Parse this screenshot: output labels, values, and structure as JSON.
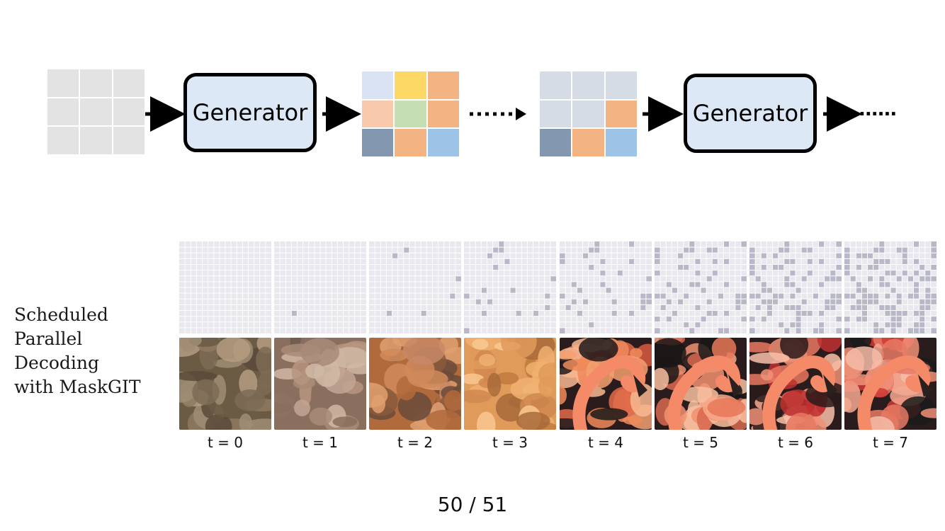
{
  "diagram": {
    "generator_label_1": "Generator",
    "generator_label_2": "Generator",
    "ellipsis": "......",
    "grids": [
      {
        "name": "input-mask-grid",
        "colors": [
          "#e3e3e3",
          "#e3e3e3",
          "#e3e3e3",
          "#e3e3e3",
          "#e3e3e3",
          "#e3e3e3",
          "#e3e3e3",
          "#e3e3e3",
          "#e3e3e3"
        ]
      },
      {
        "name": "output-token-grid",
        "colors": [
          "#d9e3f3",
          "#fdd865",
          "#f4b383",
          "#f8c9ab",
          "#c5dfb3",
          "#f4b383",
          "#8497b0",
          "#f4b383",
          "#9dc3e6"
        ]
      },
      {
        "name": "remasked-token-grid",
        "colors": [
          "#d6dce5",
          "#d6dce5",
          "#d6dce5",
          "#d6dce5",
          "#d6dce5",
          "#f4b383",
          "#8497b0",
          "#f4b383",
          "#9dc3e6"
        ]
      }
    ]
  },
  "caption": {
    "line1": "Scheduled",
    "line2": "Parallel",
    "line3": "Decoding",
    "line4": "with MaskGIT"
  },
  "steps": [
    {
      "label": "t = 0",
      "revealed": 0
    },
    {
      "label": "t = 1",
      "revealed": 1
    },
    {
      "label": "t = 2",
      "revealed": 6
    },
    {
      "label": "t = 3",
      "revealed": 18
    },
    {
      "label": "t = 4",
      "revealed": 32
    },
    {
      "label": "t = 5",
      "revealed": 55
    },
    {
      "label": "t = 6",
      "revealed": 80
    },
    {
      "label": "t = 7",
      "revealed": 105
    }
  ],
  "colors": {
    "mask_bg": "#e8e8ee",
    "mask_line": "#ffffff",
    "mask_revealed": "#b8b8c8",
    "generator_fill": "#dce8f6"
  },
  "page": {
    "indicator": "50  /  51"
  }
}
